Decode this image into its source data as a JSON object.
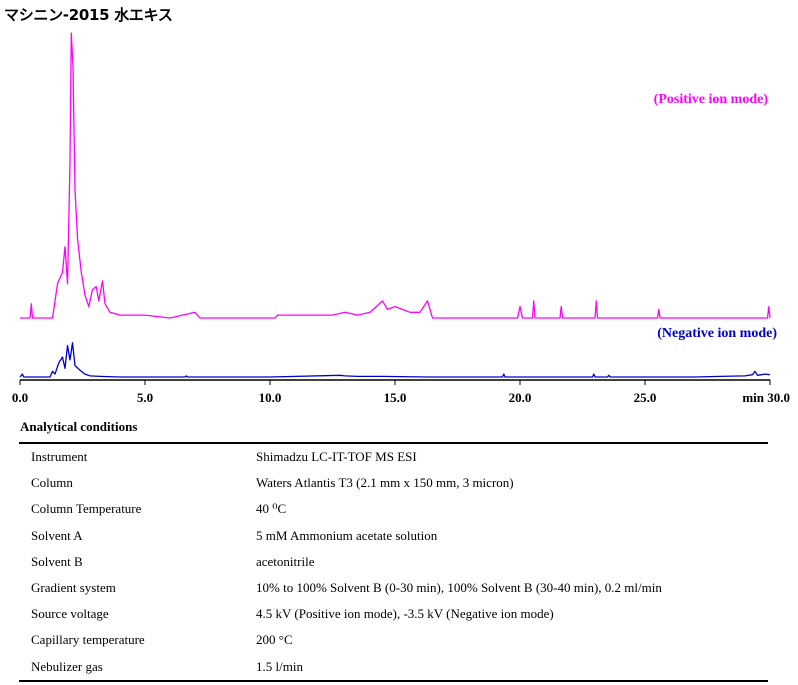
{
  "title": "マシニン-2015 水エキス",
  "chart_data": {
    "type": "line",
    "x_ticks": [
      "0.0",
      "5.0",
      "10.0",
      "15.0",
      "20.0",
      "25.0",
      "min 30.0"
    ],
    "x_tick_values": [
      0,
      5,
      10,
      15,
      20,
      25,
      30
    ],
    "xlim": [
      0,
      30
    ],
    "series": [
      {
        "name": "(Positive ion mode)",
        "color": "#ff00ff",
        "baseline_level": 0.0,
        "points": [
          [
            0.0,
            0
          ],
          [
            0.4,
            0
          ],
          [
            0.45,
            0.05
          ],
          [
            0.5,
            0
          ],
          [
            1.3,
            0
          ],
          [
            1.5,
            0.12
          ],
          [
            1.7,
            0.16
          ],
          [
            1.8,
            0.25
          ],
          [
            1.9,
            0.12
          ],
          [
            2.0,
            0.55
          ],
          [
            2.05,
            1.0
          ],
          [
            2.12,
            0.88
          ],
          [
            2.2,
            0.45
          ],
          [
            2.3,
            0.28
          ],
          [
            2.45,
            0.16
          ],
          [
            2.6,
            0.08
          ],
          [
            2.75,
            0.04
          ],
          [
            2.9,
            0.1
          ],
          [
            3.05,
            0.11
          ],
          [
            3.15,
            0.06
          ],
          [
            3.3,
            0.13
          ],
          [
            3.4,
            0.05
          ],
          [
            3.6,
            0.02
          ],
          [
            4.0,
            0.01
          ],
          [
            5.0,
            0.01
          ],
          [
            6.0,
            0.0
          ],
          [
            7.0,
            0.02
          ],
          [
            7.2,
            0.0
          ],
          [
            10.2,
            0.0
          ],
          [
            10.3,
            0.01
          ],
          [
            12.5,
            0.01
          ],
          [
            13.0,
            0.02
          ],
          [
            13.5,
            0.01
          ],
          [
            14.0,
            0.02
          ],
          [
            14.5,
            0.06
          ],
          [
            14.7,
            0.03
          ],
          [
            15.0,
            0.04
          ],
          [
            15.3,
            0.03
          ],
          [
            15.6,
            0.02
          ],
          [
            16.0,
            0.02
          ],
          [
            16.3,
            0.06
          ],
          [
            16.5,
            0.0
          ],
          [
            19.9,
            0.0
          ],
          [
            20.0,
            0.04
          ],
          [
            20.1,
            0.0
          ],
          [
            20.5,
            0.0
          ],
          [
            20.55,
            0.06
          ],
          [
            20.6,
            0.0
          ],
          [
            21.6,
            0.0
          ],
          [
            21.65,
            0.04
          ],
          [
            21.7,
            0.0
          ],
          [
            23.0,
            0.0
          ],
          [
            23.05,
            0.06
          ],
          [
            23.1,
            0.0
          ],
          [
            25.5,
            0.0
          ],
          [
            25.55,
            0.03
          ],
          [
            25.6,
            0.0
          ],
          [
            29.9,
            0.0
          ],
          [
            29.95,
            0.04
          ],
          [
            30.0,
            0.0
          ]
        ]
      },
      {
        "name": "(Negative ion mode)",
        "color": "#0000cc",
        "baseline_level": 0.0,
        "points": [
          [
            0.0,
            0
          ],
          [
            0.1,
            0.05
          ],
          [
            0.15,
            0
          ],
          [
            1.2,
            0
          ],
          [
            1.3,
            0.1
          ],
          [
            1.4,
            0.05
          ],
          [
            1.55,
            0.25
          ],
          [
            1.7,
            0.35
          ],
          [
            1.8,
            0.15
          ],
          [
            1.9,
            0.55
          ],
          [
            2.0,
            0.3
          ],
          [
            2.1,
            0.6
          ],
          [
            2.2,
            0.2
          ],
          [
            2.4,
            0.12
          ],
          [
            2.6,
            0.05
          ],
          [
            2.8,
            0.02
          ],
          [
            3.2,
            0.01
          ],
          [
            4.0,
            0.0
          ],
          [
            6.6,
            0.0
          ],
          [
            6.65,
            0.02
          ],
          [
            6.7,
            0.0
          ],
          [
            10.0,
            0.0
          ],
          [
            12.8,
            0.03
          ],
          [
            13.0,
            0.02
          ],
          [
            13.5,
            0.01
          ],
          [
            14.5,
            0.01
          ],
          [
            16.3,
            0.0
          ],
          [
            19.3,
            0.0
          ],
          [
            19.35,
            0.05
          ],
          [
            19.4,
            0.0
          ],
          [
            22.9,
            0.0
          ],
          [
            22.95,
            0.05
          ],
          [
            23.0,
            0.0
          ],
          [
            23.5,
            0.0
          ],
          [
            23.55,
            0.03
          ],
          [
            23.6,
            0.0
          ],
          [
            27.0,
            0.0
          ],
          [
            28.0,
            0.01
          ],
          [
            29.0,
            0.02
          ],
          [
            29.3,
            0.04
          ],
          [
            29.4,
            0.1
          ],
          [
            29.5,
            0.03
          ],
          [
            29.8,
            0.05
          ],
          [
            30.0,
            0.04
          ]
        ]
      }
    ]
  },
  "conditions": {
    "heading": "Analytical conditions",
    "rows": [
      {
        "key": "Instrument",
        "value": "Shimadzu LC-IT-TOF MS ESI"
      },
      {
        "key": "Column",
        "value": "Waters Atlantis T3 (2.1 mm x 150 mm, 3 micron)"
      },
      {
        "key": "Column Temperature",
        "value": "40 ⁰C"
      },
      {
        "key": "Solvent A",
        "value": "5 mM Ammonium acetate solution"
      },
      {
        "key": "Solvent B",
        "value": "acetonitrile"
      },
      {
        "key": "Gradient system",
        "value": "10% to 100% Solvent B (0-30 min), 100% Solvent B (30-40 min), 0.2 ml/min"
      },
      {
        "key": "Source voltage",
        "value": "4.5 kV (Positive ion mode), -3.5 kV (Negative ion mode)"
      },
      {
        "key": "Capillary temperature",
        "value": "200 °C"
      },
      {
        "key": "Nebulizer gas",
        "value": "1.5 l/min"
      }
    ]
  }
}
